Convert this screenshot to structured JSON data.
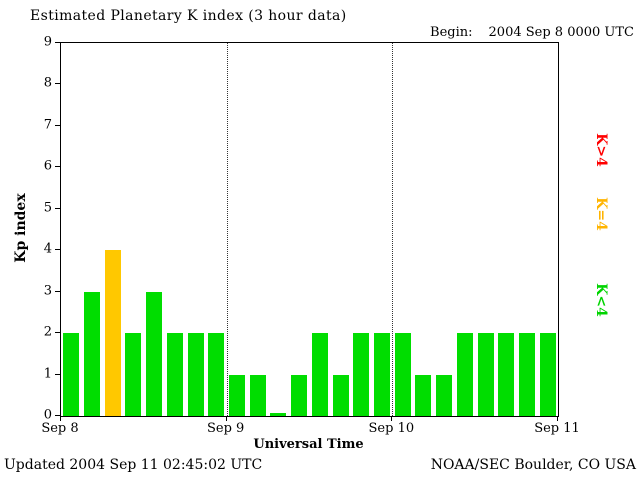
{
  "title": "Estimated Planetary K index (3 hour data)",
  "header": {
    "begin_label": "Begin:",
    "begin_value": "2004 Sep 8 0000 UTC"
  },
  "footer": {
    "updated": "Updated 2004 Sep 11 02:45:02 UTC",
    "credit": "NOAA/SEC Boulder, CO USA"
  },
  "legend": [
    {
      "label": "K>4",
      "color": "#ff0000"
    },
    {
      "label": "K=4",
      "color": "#ffb400"
    },
    {
      "label": "K<4",
      "color": "#00d400"
    }
  ],
  "chart_data": {
    "type": "bar",
    "title": "Estimated Planetary K index (3 hour data)",
    "xlabel": "Universal Time",
    "ylabel": "Kp index",
    "x_tick_labels": [
      "Sep 8",
      "Sep 9",
      "Sep 10",
      "Sep 11"
    ],
    "yticks": [
      0,
      1,
      2,
      3,
      4,
      5,
      6,
      7,
      8,
      9
    ],
    "ylim": [
      0,
      9
    ],
    "bars_per_day": 8,
    "values": [
      2,
      3,
      4,
      2,
      3,
      2,
      2,
      2,
      1,
      1,
      0,
      1,
      2,
      1,
      2,
      2,
      2,
      1,
      1,
      2,
      2,
      2,
      2,
      2
    ],
    "colors": {
      "lt4": "#00dd00",
      "eq4": "#ffc800",
      "gt4": "#ff0000"
    },
    "color_rule": "green for K<4, yellow for K=4, red for K>4",
    "grid": "dotted vertical lines at day boundaries",
    "legend_position": "right, rotated"
  }
}
